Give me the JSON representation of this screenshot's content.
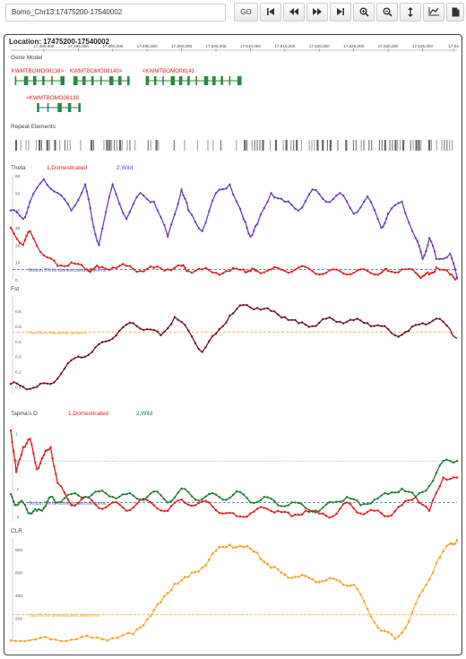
{
  "toolbar": {
    "search_value": "Bomo_Chr13:17475200-17540002",
    "go_label": "GO",
    "icons": [
      "skip-back-icon",
      "rewind-icon",
      "fast-forward-icon",
      "skip-forward-icon",
      "zoom-in-icon",
      "zoom-out-icon",
      "resize-vertical-icon",
      "line-chart-icon",
      "document-icon"
    ]
  },
  "location_label": "Location: 17475200-17540002",
  "xaxis": {
    "ticks": [
      "17,480,000",
      "17,485,000",
      "17,490,000",
      "17,495,000",
      "17,500,000",
      "17,505,000",
      "17,510,000",
      "17,515,000",
      "17,520,000",
      "17,525,000",
      "17,530,000",
      "17,535,000",
      "17,54"
    ],
    "range": [
      17475200,
      17540002
    ]
  },
  "gene_model": {
    "title": "Gene Model",
    "genes": [
      {
        "label": "KWMTBOMO08138>",
        "start": 17475800,
        "end": 17482800,
        "row": 0
      },
      {
        "label": "KWMTBOMO08140>",
        "start": 17484300,
        "end": 17492500,
        "row": 0
      },
      {
        "label": "<KWMTBOMO08141",
        "start": 17494800,
        "end": 17508500,
        "row": 0
      },
      {
        "label": "<KWMTBOMO08139",
        "start": 17479000,
        "end": 17485400,
        "row": 1
      }
    ]
  },
  "repeat_elements": {
    "title": "Repeat Elements"
  },
  "colors": {
    "domesticated": "#e31a1c",
    "wild_theta": "#6a3fb5",
    "wild_tajima": "#1f7a2e",
    "fst": "#6d1233",
    "clr": "#f2a324",
    "threshold_blue": "#4a5fa8",
    "threshold_orange": "#f2a324",
    "gene": "#2a8a3a",
    "gene_label": "#e31a1c"
  },
  "chart_data": [
    {
      "type": "line",
      "title": "Theta",
      "ylim": [
        0,
        60
      ],
      "yticks": [
        "0",
        "10",
        "20",
        "30",
        "40",
        "50",
        "60"
      ],
      "threshold_label": "Bottom 5% for domesticated silkworms",
      "threshold_value": 6,
      "x": [
        17475200,
        17477000,
        17478000,
        17480000,
        17482000,
        17484000,
        17486000,
        17487000,
        17488000,
        17490000,
        17492000,
        17494000,
        17496000,
        17498000,
        17500000,
        17501000,
        17503000,
        17505000,
        17507000,
        17509000,
        17510000,
        17511000,
        17513000,
        17515000,
        17517000,
        17519000,
        17521000,
        17523000,
        17525000,
        17527000,
        17529000,
        17530000,
        17532000,
        17534000,
        17535000,
        17536000,
        17537000,
        17539000,
        17540000
      ],
      "series": [
        {
          "name": "1,Domesticated",
          "values": [
            30,
            20,
            28,
            14,
            8,
            10,
            6,
            6,
            7,
            7,
            8,
            5,
            7,
            6,
            8,
            5,
            6,
            4,
            5,
            6,
            5,
            5,
            6,
            5,
            7,
            5,
            4,
            5,
            4,
            5,
            4,
            5,
            6,
            4,
            2,
            3,
            7,
            3,
            1
          ]
        },
        {
          "name": "2,Wild",
          "values": [
            40,
            35,
            45,
            58,
            50,
            40,
            55,
            35,
            20,
            55,
            35,
            50,
            45,
            25,
            52,
            40,
            28,
            50,
            55,
            35,
            25,
            32,
            50,
            45,
            40,
            52,
            45,
            50,
            38,
            48,
            30,
            38,
            45,
            24,
            12,
            24,
            12,
            15,
            1
          ]
        }
      ]
    },
    {
      "type": "line",
      "title": "Fst",
      "ylim": [
        0.05,
        0.7
      ],
      "yticks": [
        "0.1",
        "0.2",
        "0.3",
        "0.4",
        "0.5",
        "0.6"
      ],
      "threshold_label": "Top 5% in the whole genome",
      "threshold_value": 0.46,
      "x": [
        17475200,
        17477000,
        17479000,
        17481000,
        17483000,
        17485000,
        17487000,
        17489000,
        17491000,
        17493000,
        17495000,
        17497000,
        17499000,
        17501000,
        17503000,
        17505000,
        17507000,
        17509000,
        17511000,
        17513000,
        17515000,
        17517000,
        17519000,
        17521000,
        17523000,
        17525000,
        17527000,
        17529000,
        17531000,
        17533000,
        17535000,
        17537000,
        17539000,
        17540000
      ],
      "series": [
        {
          "name": "Fst",
          "values": [
            0.12,
            0.1,
            0.1,
            0.12,
            0.22,
            0.3,
            0.33,
            0.4,
            0.47,
            0.52,
            0.48,
            0.44,
            0.56,
            0.47,
            0.33,
            0.45,
            0.57,
            0.64,
            0.62,
            0.6,
            0.56,
            0.52,
            0.5,
            0.55,
            0.53,
            0.54,
            0.52,
            0.5,
            0.44,
            0.47,
            0.52,
            0.55,
            0.48,
            0.42
          ]
        }
      ]
    },
    {
      "type": "line",
      "title": "Tajima's D",
      "ylim": [
        -2.2,
        1.3
      ],
      "yticks": [
        "-2",
        "-1",
        "0",
        "1"
      ],
      "threshold_label": "Bottom 5% for domesticated silkworms",
      "threshold_value": -1.5,
      "x": [
        17475200,
        17476000,
        17477000,
        17478000,
        17479000,
        17480000,
        17481000,
        17482000,
        17484000,
        17486000,
        17488000,
        17490000,
        17492000,
        17494000,
        17496000,
        17498000,
        17500000,
        17502000,
        17504000,
        17506000,
        17508000,
        17510000,
        17512000,
        17514000,
        17516000,
        17518000,
        17520000,
        17522000,
        17524000,
        17526000,
        17528000,
        17530000,
        17532000,
        17534000,
        17536000,
        17538000,
        17540000
      ],
      "series": [
        {
          "name": "1,Domesticated",
          "values": [
            1.1,
            -0.4,
            0.5,
            0.8,
            -0.3,
            0.2,
            0.5,
            -0.8,
            -1.6,
            -1.3,
            -1.7,
            -1.5,
            -1.8,
            -1.4,
            -1.6,
            -1.8,
            -1.4,
            -1.6,
            -1.5,
            -1.9,
            -2.0,
            -1.9,
            -1.7,
            -1.8,
            -2.0,
            -1.8,
            -1.9,
            -2.0,
            -1.5,
            -1.9,
            -1.8,
            -2.0,
            -1.6,
            -1.3,
            -1.8,
            -0.6,
            -0.6
          ]
        },
        {
          "name": "2,Wild",
          "values": [
            -1.2,
            -1.6,
            -1.5,
            -1.9,
            -1.8,
            -1.7,
            -1.3,
            -1.5,
            -1.2,
            -1.3,
            -1.1,
            -1.3,
            -1.2,
            -1.4,
            -1.1,
            -1.5,
            -1.0,
            -1.4,
            -1.2,
            -1.4,
            -1.1,
            -1.5,
            -1.3,
            -1.6,
            -1.5,
            -1.7,
            -1.8,
            -1.5,
            -1.3,
            -1.6,
            -1.4,
            -1.2,
            -1.0,
            -1.3,
            -0.9,
            0.0,
            0.0
          ]
        }
      ]
    },
    {
      "type": "line",
      "title": "CLR",
      "ylim": [
        0,
        900
      ],
      "yticks": [
        "200",
        "400",
        "600",
        "800"
      ],
      "threshold_label": "Top 5% for domesticated silkworms",
      "threshold_value": 230,
      "x": [
        17475200,
        17478000,
        17481000,
        17484000,
        17487000,
        17490000,
        17493000,
        17495000,
        17497000,
        17499000,
        17501000,
        17503000,
        17505000,
        17507000,
        17509000,
        17511000,
        17513000,
        17515000,
        17517000,
        17519000,
        17521000,
        17523000,
        17525000,
        17527000,
        17529000,
        17531000,
        17533000,
        17535000,
        17537000,
        17539000,
        17540000
      ],
      "series": [
        {
          "name": "CLR",
          "values": [
            5,
            8,
            15,
            12,
            30,
            25,
            60,
            190,
            340,
            500,
            560,
            640,
            790,
            840,
            820,
            770,
            640,
            580,
            560,
            540,
            530,
            520,
            490,
            280,
            90,
            20,
            170,
            440,
            680,
            850,
            880
          ]
        }
      ]
    }
  ]
}
